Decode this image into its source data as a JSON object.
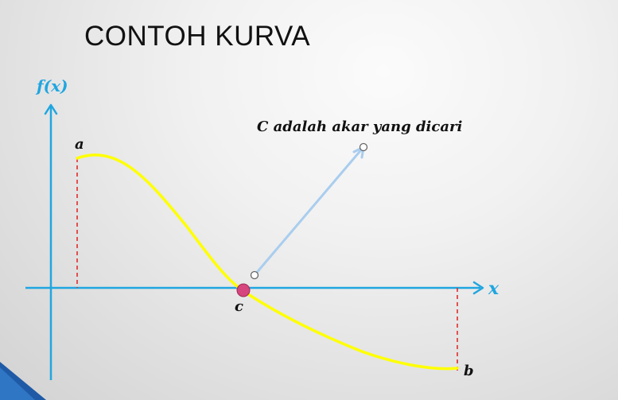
{
  "title": "CONTOH KURVA",
  "axes": {
    "y_label": "f(x)",
    "x_label": "x"
  },
  "points": {
    "a_label": "a",
    "b_label": "b",
    "c_label": "c"
  },
  "annotation": "C adalah akar yang dicari",
  "colors": {
    "axis": "#1fa6e0",
    "curve": "#ffff00",
    "root_point": "#d6457e",
    "dashed_line": "#e02020",
    "arrow": "#a9cdee",
    "corner_accent": "#1f5aa6"
  }
}
